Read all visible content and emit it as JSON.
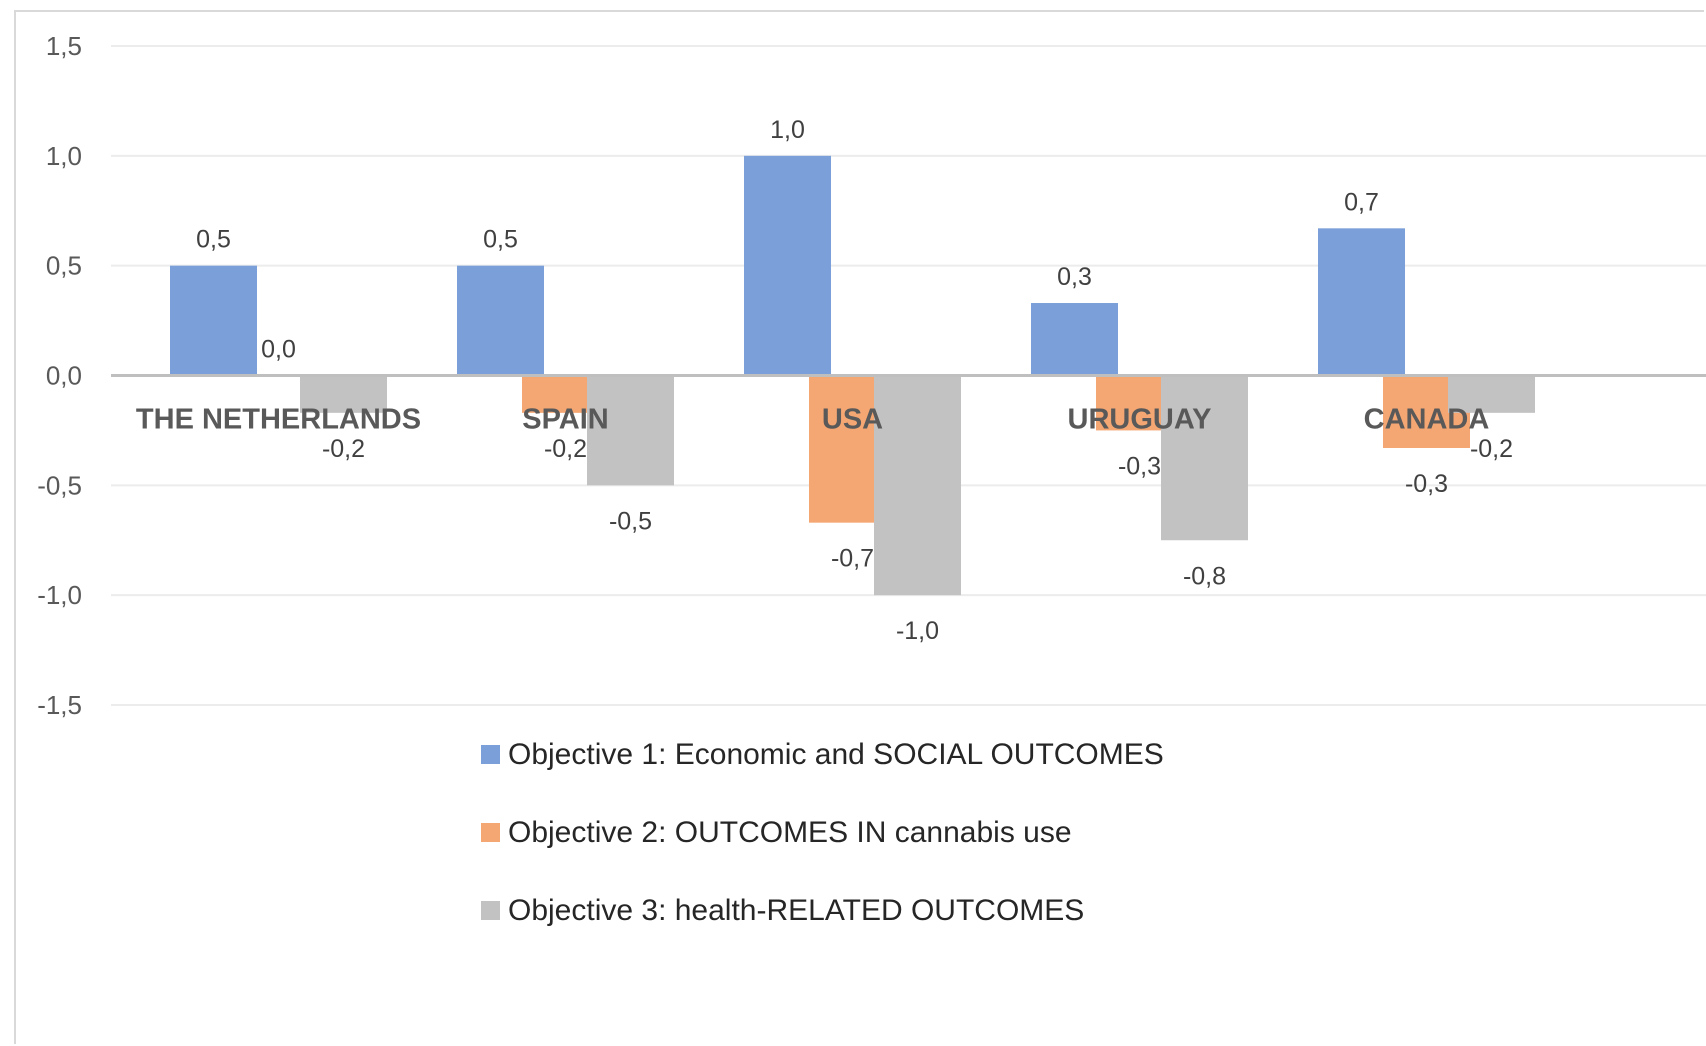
{
  "chart_data": {
    "type": "bar",
    "title": "",
    "xlabel": "",
    "ylabel": "",
    "ylim": [
      -1.5,
      1.5
    ],
    "yticks": [
      "1,5",
      "1,0",
      "0,5",
      "0,0",
      "-0,5",
      "-1,0",
      "-1,5"
    ],
    "ytick_values": [
      1.5,
      1.0,
      0.5,
      0.0,
      -0.5,
      -1.0,
      -1.5
    ],
    "grid": true,
    "legend_position": "bottom",
    "categories": [
      "THE NETHERLANDS",
      "SPAIN",
      "USA",
      "URUGUAY",
      "CANADA"
    ],
    "series": [
      {
        "name": "Objective 1: Economic and SOCIAL OUTCOMES",
        "color": "#7b9fd8",
        "values": [
          0.5,
          0.5,
          1.0,
          0.33,
          0.67
        ],
        "labels": [
          "0,5",
          "0,5",
          "1,0",
          "0,3",
          "0,7"
        ]
      },
      {
        "name": "Objective 2: OUTCOMES IN cannabis use",
        "color": "#f4a673",
        "values": [
          0.0,
          -0.17,
          -0.67,
          -0.25,
          -0.33
        ],
        "labels": [
          "0,0",
          "-0,2",
          "-0,7",
          "-0,3",
          "-0,3"
        ]
      },
      {
        "name": "Objective 3: health-RELATED OUTCOMES",
        "color": "#c2c2c2",
        "values": [
          -0.17,
          -0.5,
          -1.0,
          -0.75,
          -0.17
        ],
        "labels": [
          "-0,2",
          "-0,5",
          "-1,0",
          "-0,8",
          "-0,2"
        ]
      }
    ]
  }
}
